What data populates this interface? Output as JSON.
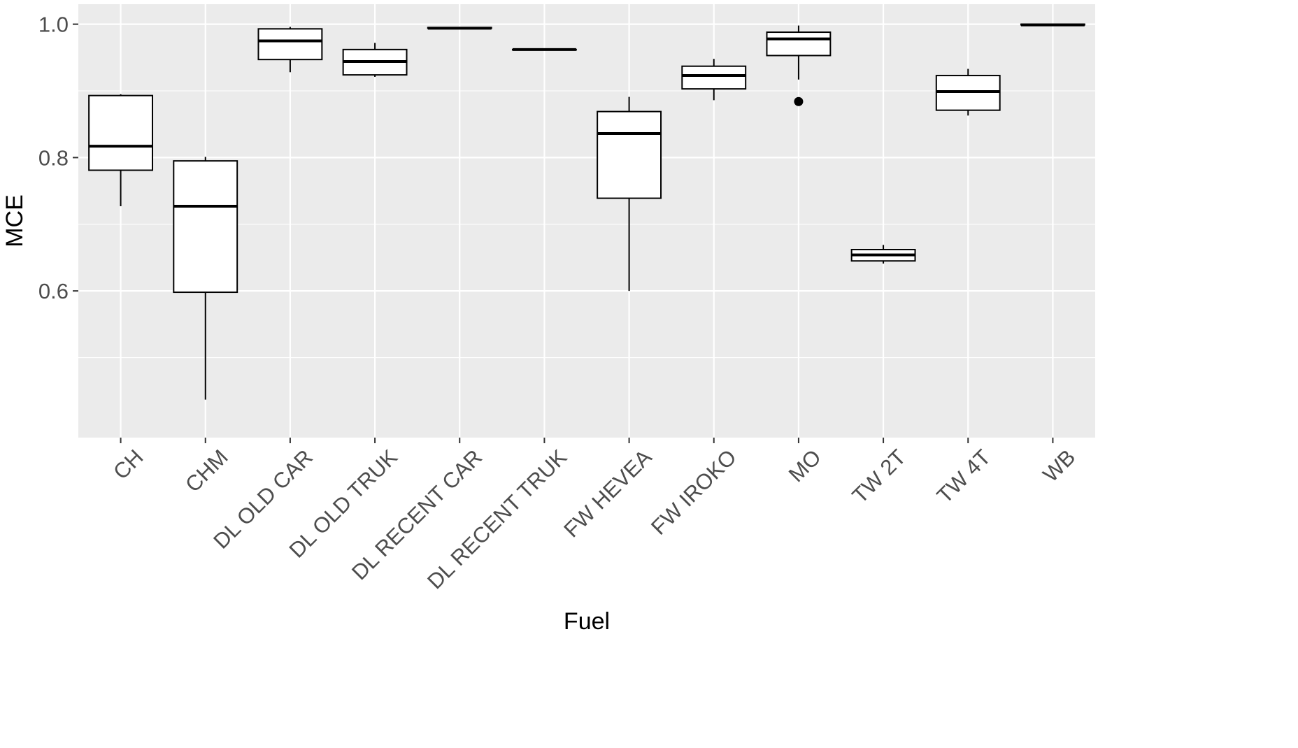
{
  "chart_data": {
    "type": "boxplot",
    "title": "",
    "xlabel": "Fuel",
    "ylabel": "MCE",
    "ylim": [
      0.38,
      1.03
    ],
    "yticks": [
      0.6,
      0.8,
      1.0
    ],
    "ytick_labels": [
      "0.6",
      "0.8",
      "1.0"
    ],
    "grid": true,
    "background": "#EBEBEB",
    "grid_color": "#FFFFFF",
    "box_fill": "#FFFFFF",
    "line_color": "#000000",
    "categories": [
      "CH",
      "CHM",
      "DL OLD CAR",
      "DL OLD TRUK",
      "DL RECENT CAR",
      "DL RECENT TRUK",
      "FW HEVEA",
      "FW IROKO",
      "MO",
      "TW 2T",
      "TW 4T",
      "WB"
    ],
    "boxes": [
      {
        "category": "CH",
        "min": 0.727,
        "q1": 0.781,
        "median": 0.817,
        "q3": 0.893,
        "max": 0.895,
        "outliers": []
      },
      {
        "category": "CHM",
        "min": 0.437,
        "q1": 0.598,
        "median": 0.727,
        "q3": 0.795,
        "max": 0.801,
        "outliers": []
      },
      {
        "category": "DL OLD CAR",
        "min": 0.928,
        "q1": 0.947,
        "median": 0.975,
        "q3": 0.993,
        "max": 0.996,
        "outliers": []
      },
      {
        "category": "DL OLD TRUK",
        "min": 0.921,
        "q1": 0.924,
        "median": 0.944,
        "q3": 0.962,
        "max": 0.972,
        "outliers": []
      },
      {
        "category": "DL RECENT CAR",
        "min": 0.993,
        "q1": 0.994,
        "median": 0.994,
        "q3": 0.995,
        "max": 0.996,
        "outliers": []
      },
      {
        "category": "DL RECENT TRUK",
        "min": 0.962,
        "q1": 0.962,
        "median": 0.962,
        "q3": 0.962,
        "max": 0.962,
        "outliers": []
      },
      {
        "category": "FW HEVEA",
        "min": 0.6,
        "q1": 0.739,
        "median": 0.836,
        "q3": 0.869,
        "max": 0.891,
        "outliers": []
      },
      {
        "category": "FW IROKO",
        "min": 0.886,
        "q1": 0.903,
        "median": 0.923,
        "q3": 0.937,
        "max": 0.948,
        "outliers": []
      },
      {
        "category": "MO",
        "min": 0.917,
        "q1": 0.953,
        "median": 0.978,
        "q3": 0.988,
        "max": 0.998,
        "outliers": [
          0.884
        ]
      },
      {
        "category": "TW 2T",
        "min": 0.641,
        "q1": 0.645,
        "median": 0.654,
        "q3": 0.662,
        "max": 0.669,
        "outliers": []
      },
      {
        "category": "TW 4T",
        "min": 0.863,
        "q1": 0.871,
        "median": 0.899,
        "q3": 0.923,
        "max": 0.933,
        "outliers": []
      },
      {
        "category": "WB",
        "min": 0.999,
        "q1": 0.999,
        "median": 0.999,
        "q3": 1.0,
        "max": 1.0,
        "outliers": []
      }
    ]
  }
}
